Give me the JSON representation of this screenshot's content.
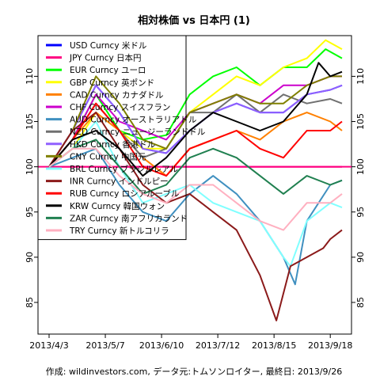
{
  "chart_data": {
    "type": "line",
    "title": "相対株価 vs 日本円 (1)",
    "caption": "作成: wildinvestors.com, データ元:トムソンロイター, 最終日: 2013/9/26",
    "x_ticks": [
      "2013/4/3",
      "2013/5/7",
      "2013/6/10",
      "2013/7/12",
      "2013/8/15",
      "2013/9/18"
    ],
    "y_ticks": [
      85,
      90,
      95,
      100,
      105,
      110
    ],
    "ylim": [
      81.5,
      114.5
    ],
    "x_index_range": [
      0,
      125
    ],
    "x_tick_index": [
      0,
      24,
      48,
      72,
      96,
      120
    ],
    "reference_line": {
      "y": 100,
      "color": "#ff0080"
    },
    "legend_position": "top-left",
    "series": [
      {
        "name": "USD Curncy 米ドル",
        "color": "#0000ff"
      },
      {
        "name": "JPY Curncy 日本円",
        "color": "#ff0080"
      },
      {
        "name": "EUR Curncy ユーロ",
        "color": "#00ff00"
      },
      {
        "name": "GBP Curncy 英ポンド",
        "color": "#ffff00"
      },
      {
        "name": "CAD Curncy カナダドル",
        "color": "#ff8000"
      },
      {
        "name": "CHF Curncy スイスフラン",
        "color": "#cc00cc"
      },
      {
        "name": "AUD Curncy オーストラリアドル",
        "color": "#4090c0"
      },
      {
        "name": "NZD Curncy ニュージーランドドル",
        "color": "#707070"
      },
      {
        "name": "HKD Curncy 香港ドル",
        "color": "#9060ff"
      },
      {
        "name": "CNY Curncy 中国元",
        "color": "#808000"
      },
      {
        "name": "BRL Curncy ブラジルレアル",
        "color": "#80ffff"
      },
      {
        "name": "INR Curncy インドルピー",
        "color": "#8b1a1a"
      },
      {
        "name": "RUB Curncy ロシアルーブル",
        "color": "#ff0000"
      },
      {
        "name": "KRW Curncy 韓国ウォン",
        "color": "#000000"
      },
      {
        "name": "ZAR Curncy 南アフリカランド",
        "color": "#208050"
      },
      {
        "name": "TRY Curncy 新トルコリラ",
        "color": "#ffb0c0"
      }
    ],
    "series_points": [
      [
        [
          0,
          100
        ],
        [
          10,
          104
        ],
        [
          20,
          109
        ],
        [
          30,
          106
        ],
        [
          40,
          102
        ],
        [
          50,
          101.5
        ],
        [
          60,
          104
        ],
        [
          70,
          106
        ],
        [
          80,
          107
        ],
        [
          90,
          106
        ],
        [
          100,
          106
        ],
        [
          110,
          108
        ],
        [
          120,
          108.5
        ],
        [
          125,
          109
        ]
      ],
      [
        [
          0,
          100
        ],
        [
          125,
          100
        ]
      ],
      [
        [
          0,
          100
        ],
        [
          10,
          103
        ],
        [
          20,
          108
        ],
        [
          30,
          104
        ],
        [
          40,
          103
        ],
        [
          50,
          103.5
        ],
        [
          60,
          108
        ],
        [
          70,
          110
        ],
        [
          80,
          111
        ],
        [
          90,
          109
        ],
        [
          100,
          111
        ],
        [
          110,
          111
        ],
        [
          118,
          113
        ],
        [
          125,
          112
        ]
      ],
      [
        [
          0,
          100
        ],
        [
          10,
          102
        ],
        [
          20,
          106
        ],
        [
          30,
          104
        ],
        [
          40,
          102
        ],
        [
          50,
          102
        ],
        [
          60,
          106
        ],
        [
          70,
          108
        ],
        [
          80,
          110
        ],
        [
          90,
          109
        ],
        [
          100,
          111
        ],
        [
          110,
          112
        ],
        [
          118,
          114
        ],
        [
          125,
          113
        ]
      ],
      [
        [
          0,
          100
        ],
        [
          10,
          103
        ],
        [
          20,
          106
        ],
        [
          30,
          104
        ],
        [
          40,
          101
        ],
        [
          50,
          99
        ],
        [
          60,
          102
        ],
        [
          70,
          103
        ],
        [
          80,
          104
        ],
        [
          90,
          103
        ],
        [
          100,
          105
        ],
        [
          110,
          106
        ],
        [
          120,
          105
        ],
        [
          125,
          104
        ]
      ],
      [
        [
          0,
          100
        ],
        [
          10,
          103
        ],
        [
          20,
          108
        ],
        [
          30,
          105
        ],
        [
          40,
          104
        ],
        [
          50,
          103
        ],
        [
          60,
          106
        ],
        [
          70,
          107
        ],
        [
          80,
          108
        ],
        [
          90,
          107
        ],
        [
          100,
          109
        ],
        [
          110,
          109
        ],
        [
          120,
          110
        ],
        [
          125,
          110
        ]
      ],
      [
        [
          0,
          100
        ],
        [
          10,
          101
        ],
        [
          20,
          102
        ],
        [
          30,
          98
        ],
        [
          40,
          95
        ],
        [
          50,
          94
        ],
        [
          60,
          97
        ],
        [
          70,
          99
        ],
        [
          80,
          97
        ],
        [
          90,
          94
        ],
        [
          100,
          90
        ],
        [
          105,
          87
        ],
        [
          110,
          94
        ],
        [
          120,
          98
        ],
        [
          125,
          98.5
        ]
      ],
      [
        [
          0,
          100
        ],
        [
          10,
          103
        ],
        [
          20,
          107
        ],
        [
          30,
          104
        ],
        [
          40,
          101
        ],
        [
          50,
          102
        ],
        [
          60,
          106
        ],
        [
          70,
          106
        ],
        [
          80,
          108
        ],
        [
          90,
          106
        ],
        [
          100,
          108
        ],
        [
          110,
          107
        ],
        [
          120,
          107.5
        ],
        [
          125,
          107
        ]
      ],
      [
        [
          0,
          100
        ],
        [
          10,
          104
        ],
        [
          20,
          109
        ],
        [
          30,
          106
        ],
        [
          40,
          102
        ],
        [
          50,
          101.5
        ],
        [
          60,
          104
        ],
        [
          70,
          106
        ],
        [
          80,
          107
        ],
        [
          90,
          106
        ],
        [
          100,
          106
        ],
        [
          110,
          108
        ],
        [
          120,
          108.5
        ],
        [
          125,
          109
        ]
      ],
      [
        [
          0,
          100
        ],
        [
          10,
          104
        ],
        [
          20,
          110
        ],
        [
          30,
          107
        ],
        [
          40,
          103
        ],
        [
          50,
          102
        ],
        [
          60,
          106
        ],
        [
          70,
          107
        ],
        [
          80,
          108
        ],
        [
          90,
          107
        ],
        [
          100,
          107
        ],
        [
          110,
          109
        ],
        [
          120,
          110
        ],
        [
          125,
          110
        ]
      ],
      [
        [
          0,
          100
        ],
        [
          10,
          102
        ],
        [
          20,
          105
        ],
        [
          30,
          100
        ],
        [
          40,
          96
        ],
        [
          50,
          97
        ],
        [
          60,
          98
        ],
        [
          70,
          96
        ],
        [
          80,
          95
        ],
        [
          90,
          94
        ],
        [
          100,
          90
        ],
        [
          103,
          89
        ],
        [
          110,
          94
        ],
        [
          120,
          96
        ],
        [
          125,
          95.5
        ]
      ],
      [
        [
          0,
          100
        ],
        [
          10,
          104
        ],
        [
          20,
          106
        ],
        [
          30,
          102
        ],
        [
          40,
          98
        ],
        [
          50,
          96
        ],
        [
          60,
          97
        ],
        [
          70,
          95
        ],
        [
          80,
          93
        ],
        [
          90,
          88
        ],
        [
          97,
          83
        ],
        [
          103,
          89
        ],
        [
          110,
          90
        ],
        [
          117,
          91
        ],
        [
          120,
          92
        ],
        [
          125,
          93
        ]
      ],
      [
        [
          0,
          100
        ],
        [
          10,
          103
        ],
        [
          20,
          107
        ],
        [
          30,
          104
        ],
        [
          40,
          100
        ],
        [
          50,
          99
        ],
        [
          60,
          102
        ],
        [
          70,
          103
        ],
        [
          80,
          104
        ],
        [
          90,
          102
        ],
        [
          100,
          101
        ],
        [
          110,
          104
        ],
        [
          120,
          104
        ],
        [
          125,
          105
        ]
      ],
      [
        [
          0,
          100
        ],
        [
          10,
          103
        ],
        [
          20,
          104
        ],
        [
          30,
          102
        ],
        [
          40,
          99
        ],
        [
          50,
          101
        ],
        [
          60,
          104
        ],
        [
          70,
          106
        ],
        [
          80,
          105
        ],
        [
          90,
          104
        ],
        [
          100,
          105
        ],
        [
          110,
          108
        ],
        [
          115,
          111.5
        ],
        [
          120,
          110
        ],
        [
          125,
          110.5
        ]
      ],
      [
        [
          0,
          100
        ],
        [
          10,
          102
        ],
        [
          20,
          103
        ],
        [
          30,
          100
        ],
        [
          40,
          97
        ],
        [
          50,
          98
        ],
        [
          60,
          101
        ],
        [
          70,
          102
        ],
        [
          80,
          101
        ],
        [
          90,
          99
        ],
        [
          100,
          97
        ],
        [
          110,
          99
        ],
        [
          120,
          98
        ],
        [
          125,
          98.5
        ]
      ],
      [
        [
          0,
          100
        ],
        [
          10,
          102
        ],
        [
          20,
          102
        ],
        [
          30,
          99
        ],
        [
          40,
          97
        ],
        [
          50,
          96
        ],
        [
          60,
          98
        ],
        [
          70,
          98
        ],
        [
          80,
          96
        ],
        [
          90,
          94
        ],
        [
          100,
          93
        ],
        [
          110,
          96
        ],
        [
          120,
          96
        ],
        [
          125,
          97
        ]
      ]
    ]
  }
}
